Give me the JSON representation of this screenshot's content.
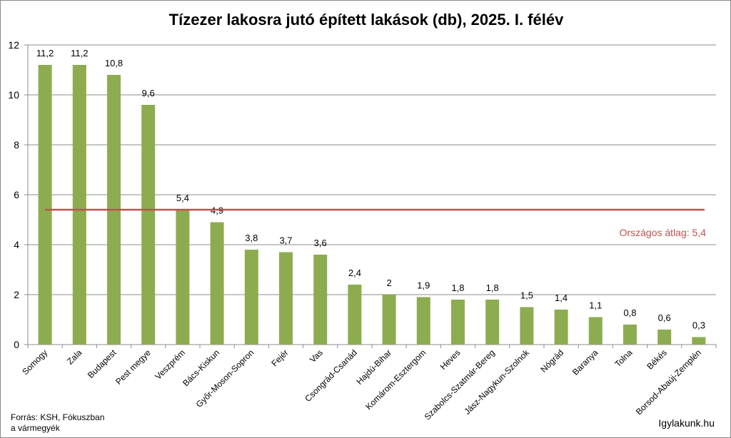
{
  "chart_data": {
    "type": "bar",
    "title": "Tízezer lakosra jutó épített lakások (db), 2025. I. félév",
    "categories": [
      "Somogy",
      "Zala",
      "Budapest",
      "Pest megye",
      "Veszprém",
      "Bács-Kiskun",
      "Győr-Moson-Sopron",
      "Fejér",
      "Vas",
      "Csongrád-Csanád",
      "Hajdú-Bihar",
      "Komárom-Esztergom",
      "Heves",
      "Szabolcs-Szatmár-Bereg",
      "Jász-Nagykun-Szolnok",
      "Nógrád",
      "Baranya",
      "Tolna",
      "Békés",
      "Borsod-Abaúj-Zemplén"
    ],
    "values": [
      11.2,
      11.2,
      10.8,
      9.6,
      5.4,
      4.9,
      3.8,
      3.7,
      3.6,
      2.4,
      2,
      1.9,
      1.8,
      1.8,
      1.5,
      1.4,
      1.1,
      0.8,
      0.6,
      0.3
    ],
    "value_labels": [
      "11,2",
      "11,2",
      "10,8",
      "9,6",
      "5,4",
      "4,9",
      "3,8",
      "3,7",
      "3,6",
      "2,4",
      "2",
      "1,9",
      "1,8",
      "1,8",
      "1,5",
      "1,4",
      "1,1",
      "0,8",
      "0,6",
      "0,3"
    ],
    "xlabel": "",
    "ylabel": "",
    "ylim": [
      0,
      12
    ],
    "yticks": [
      0,
      2,
      4,
      6,
      8,
      10,
      12
    ],
    "grid": true,
    "bar_color": "#8DAC50",
    "reference_line": {
      "value": 5.4,
      "label": "Országos átlag: 5,4",
      "color": "#C0504D"
    }
  },
  "footer": {
    "source_line1": "Forrás: KSH, Fókuszban",
    "source_line2": "a vármegyék",
    "watermark": "Igylakunk.hu"
  }
}
